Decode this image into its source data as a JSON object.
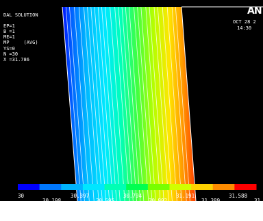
{
  "annotation": {
    "lines": [
      "DAL SOLUTION",
      "",
      "EP=1",
      "B =1",
      "ME=1",
      "MP     (AVG)",
      "YS=0",
      "N =30",
      "X =31.786"
    ]
  },
  "brand": "AN",
  "date": "OCT 28 2",
  "time": "14:30",
  "legend": {
    "upper_labels": [
      "30",
      "30.397",
      "30.794",
      "31.191",
      "31.588"
    ],
    "lower_labels": [
      "30.198",
      "30.595",
      "30.992",
      "31.389",
      "31"
    ],
    "colors": [
      "#0000ff",
      "#0078ff",
      "#00b4ff",
      "#00e6ff",
      "#00ffb4",
      "#00ff50",
      "#78ff00",
      "#d2ff00",
      "#ffd200",
      "#ff8c00",
      "#ff0000"
    ]
  },
  "colors": {
    "background": "#000000",
    "text": "#ffffff"
  }
}
